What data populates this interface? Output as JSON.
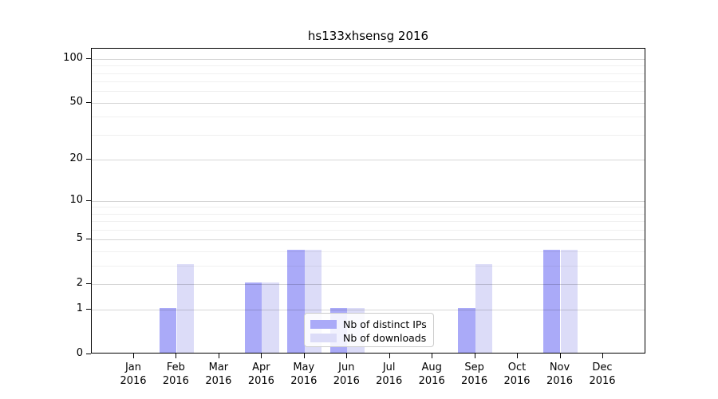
{
  "chart_data": {
    "type": "bar",
    "title": "hs133xhsensg 2016",
    "categories": [
      "Jan 2016",
      "Feb 2016",
      "Mar 2016",
      "Apr 2016",
      "May 2016",
      "Jun 2016",
      "Jul 2016",
      "Aug 2016",
      "Sep 2016",
      "Oct 2016",
      "Nov 2016",
      "Dec 2016"
    ],
    "series": [
      {
        "name": "Nb of distinct IPs",
        "color": "#aaaaf8",
        "values": [
          0,
          1,
          0,
          2,
          4,
          1,
          0,
          0,
          1,
          0,
          4,
          0
        ]
      },
      {
        "name": "Nb of downloads",
        "color": "#dcdcf8",
        "values": [
          0,
          3,
          0,
          2,
          4,
          1,
          0,
          0,
          3,
          0,
          4,
          0
        ]
      }
    ],
    "xlabel": "",
    "ylabel": "",
    "y_axis": {
      "scale": "log10(1+y)",
      "major_ticks": [
        0,
        1,
        2,
        5,
        10,
        20,
        50,
        100
      ],
      "minor_gridlines": [
        3,
        4,
        6,
        7,
        8,
        9,
        30,
        40,
        60,
        70,
        80,
        90
      ],
      "ylim": [
        0,
        117
      ]
    },
    "grid": true,
    "legend_position": "lower center, inside plot",
    "colors": {
      "axis": "#000000",
      "grid_major": "rgba(0,0,0,0.16)",
      "grid_minor": "rgba(0,0,0,0.06)",
      "legend_border": "#cccccc"
    }
  }
}
